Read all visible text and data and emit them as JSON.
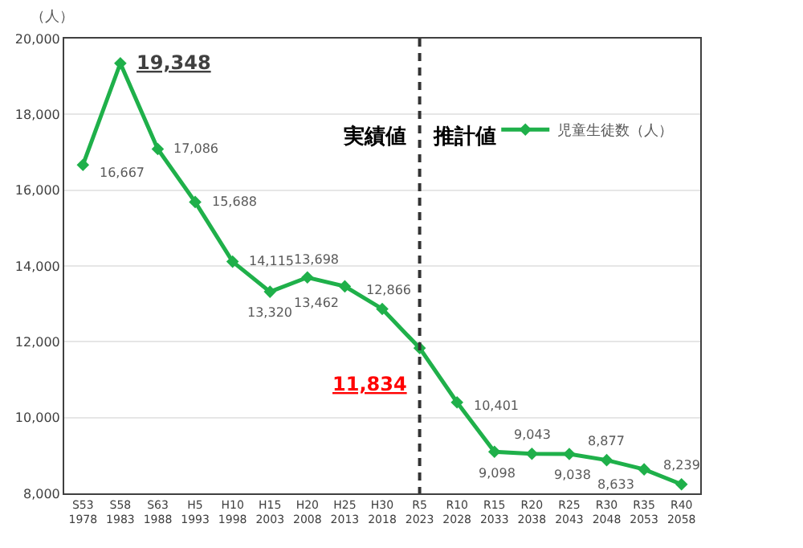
{
  "chart_data": {
    "type": "line",
    "ylabel": "（人）",
    "categories": [
      "S53\n1978",
      "S58\n1983",
      "S63\n1988",
      "H5\n1993",
      "H10\n1998",
      "H15\n2003",
      "H20\n2008",
      "H25\n2013",
      "H30\n2018",
      "R5\n2023",
      "R10\n2028",
      "R15\n2033",
      "R20\n2038",
      "R25\n2043",
      "R30\n2048",
      "R35\n2053",
      "R40\n2058"
    ],
    "series": [
      {
        "name": "児童生徒数（人）",
        "color": "#1fb04a",
        "values": [
          16667,
          19348,
          17086,
          15688,
          14115,
          13320,
          13698,
          13462,
          12866,
          11834,
          10401,
          9098,
          9043,
          9038,
          8877,
          8633,
          8239
        ]
      }
    ],
    "value_labels": [
      "16,667",
      "19,348",
      "17,086",
      "15,688",
      "14,115",
      "13,320",
      "13,698",
      "13,462",
      "12,866",
      "11,834",
      "10,401",
      "9,098",
      "9,043",
      "9,038",
      "8,877",
      "8,633",
      "8,239"
    ],
    "ylim": [
      8000,
      20000
    ],
    "yticks": [
      {
        "value": 8000,
        "label": "8,000"
      },
      {
        "value": 10000,
        "label": "10,000"
      },
      {
        "value": 12000,
        "label": "12,000"
      },
      {
        "value": 14000,
        "label": "14,000"
      },
      {
        "value": 16000,
        "label": "16,000"
      },
      {
        "value": 18000,
        "label": "18,000"
      },
      {
        "value": 20000,
        "label": "20,000"
      }
    ],
    "ref_lines": [
      {
        "axis": "x",
        "value": "R5\n2023",
        "color": "#333333",
        "line_style": "dashed"
      }
    ],
    "annotations": [
      "実績値",
      "推計値"
    ],
    "grid": "y",
    "legend": "right",
    "marker": "diamond",
    "line_style": "solid"
  }
}
